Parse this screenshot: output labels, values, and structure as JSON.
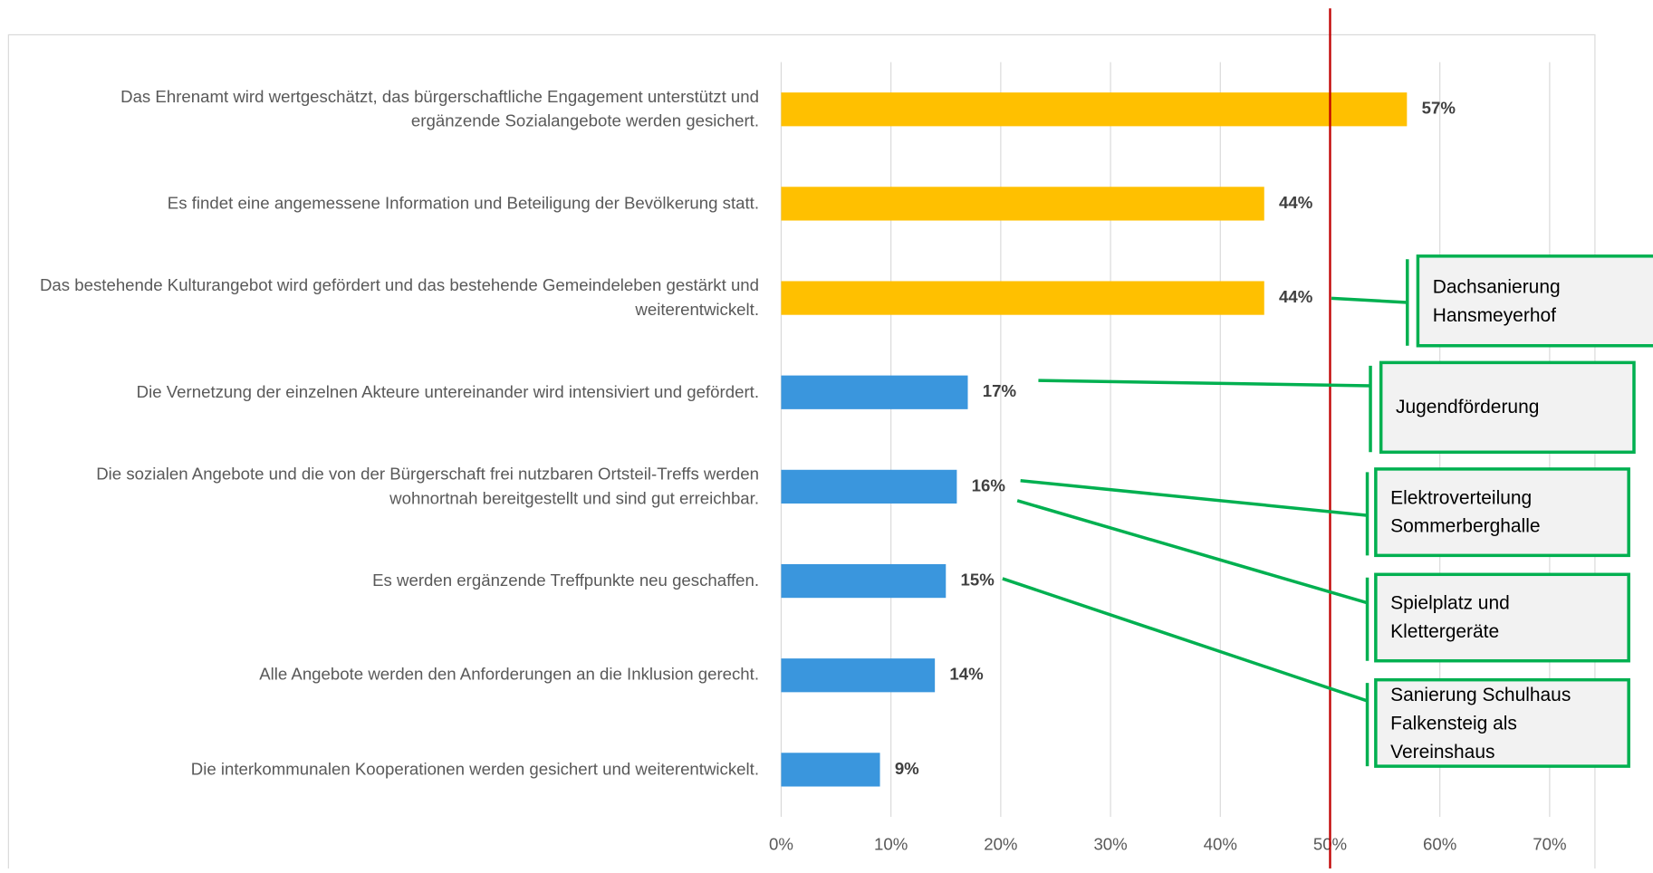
{
  "chart_data": {
    "type": "bar",
    "orientation": "horizontal",
    "categories": [
      "Das Ehrenamt wird wertgeschätzt, das bürgerschaftliche Engagement unterstützt und ergänzende Sozialangebote werden gesichert.",
      "Es findet eine angemessene Information und Beteiligung der Bevölkerung statt.",
      "Das bestehende Kulturangebot wird gefördert und das bestehende Gemeindeleben gestärkt und weiterentwickelt.",
      "Die Vernetzung der einzelnen Akteure untereinander wird intensiviert und gefördert.",
      "Die sozialen Angebote und die von der Bürgerschaft frei nutzbaren Ortsteil-Treffs werden wohnortnah bereitgestellt und sind gut erreichbar.",
      "Es werden ergänzende Treffpunkte neu geschaffen.",
      "Alle Angebote werden den Anforderungen an die Inklusion gerecht.",
      "Die interkommunalen Kooperationen werden gesichert und weiterentwickelt."
    ],
    "values": [
      57,
      44,
      44,
      17,
      16,
      15,
      14,
      9
    ],
    "value_labels": [
      "57%",
      "44%",
      "44%",
      "17%",
      "16%",
      "15%",
      "14%",
      "9%"
    ],
    "colors": [
      "#ffc000",
      "#ffc000",
      "#ffc000",
      "#3a96dd",
      "#3a96dd",
      "#3a96dd",
      "#3a96dd",
      "#3a96dd"
    ],
    "xlim": [
      0,
      70
    ],
    "xticks": [
      {
        "value": 0,
        "label": "0%"
      },
      {
        "value": 10,
        "label": "10%"
      },
      {
        "value": 20,
        "label": "20%"
      },
      {
        "value": 30,
        "label": "30%"
      },
      {
        "value": 40,
        "label": "40%"
      },
      {
        "value": 50,
        "label": "50%"
      },
      {
        "value": 60,
        "label": "60%"
      },
      {
        "value": 70,
        "label": "70%"
      }
    ],
    "grid": true,
    "reference_line": 50,
    "reference_color": "#c00000",
    "callouts": [
      "Dachsanierung Hansmeyerhof",
      "Jugendförderung",
      "Elektroverteilung Sommerberghalle",
      "Spielplatz und Klettergeräte",
      "Sanierung Schulhaus Falkensteig als Vereinshaus"
    ]
  }
}
